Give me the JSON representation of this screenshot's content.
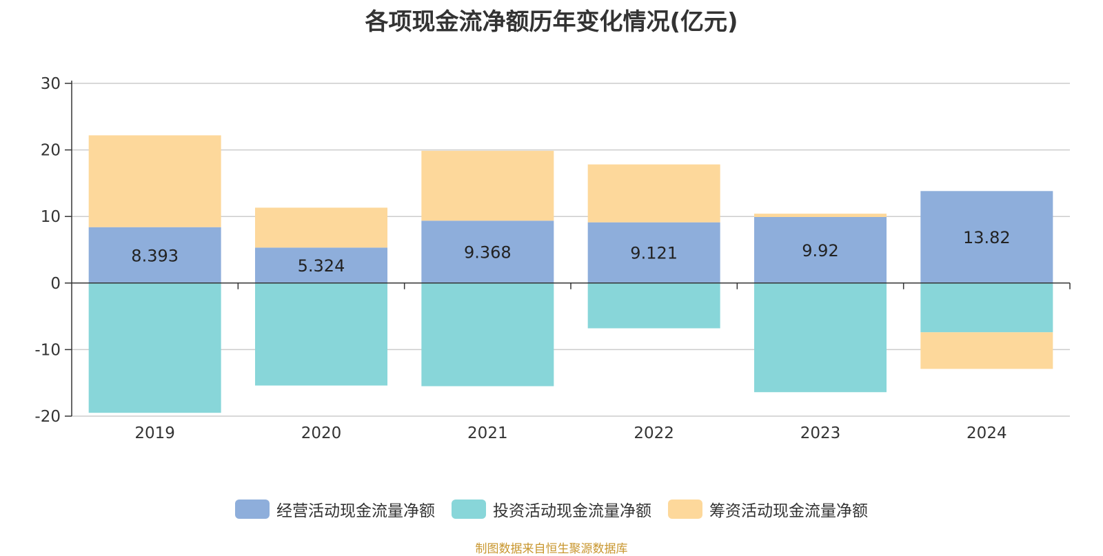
{
  "chart_data": {
    "type": "bar",
    "stacked": true,
    "title": "各项现金流净额历年变化情况(亿元)",
    "categories": [
      "2019",
      "2020",
      "2021",
      "2022",
      "2023",
      "2024"
    ],
    "series": [
      {
        "name": "经营活动现金流量净额",
        "color": "#8eaedb",
        "values": [
          8.393,
          5.324,
          9.368,
          9.121,
          9.92,
          13.82
        ]
      },
      {
        "name": "投资活动现金流量净额",
        "color": "#88d6d9",
        "values": [
          -19.5,
          -15.4,
          -15.5,
          -6.8,
          -16.4,
          -7.4
        ]
      },
      {
        "name": "筹资活动现金流量净额",
        "color": "#fdd89b",
        "values": [
          13.8,
          6.0,
          10.5,
          8.7,
          0.5,
          -5.5
        ]
      }
    ],
    "data_labels": [
      "8.393",
      "5.324",
      "9.368",
      "9.121",
      "9.92",
      "13.82"
    ],
    "ylim": [
      -20,
      30
    ],
    "yticks": [
      30,
      20,
      10,
      0,
      -10,
      -20
    ],
    "grid": true,
    "legend_position": "bottom"
  },
  "source_note": "制图数据来自恒生聚源数据库"
}
